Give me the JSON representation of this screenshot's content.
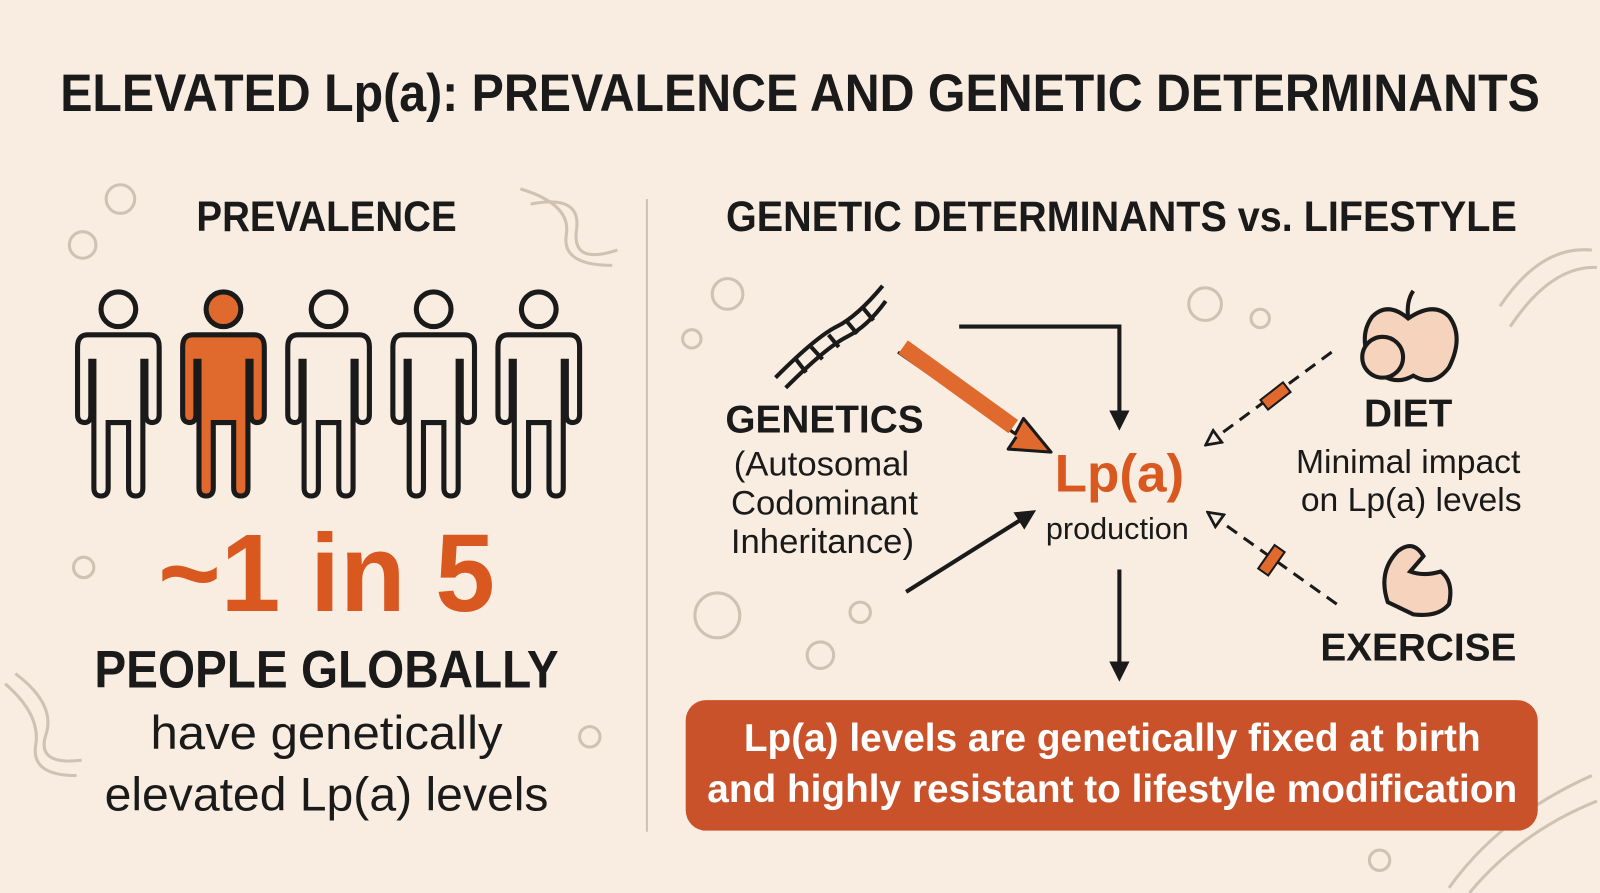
{
  "header": {
    "title": "ELEVATED Lp(a): PREVALENCE AND GENETIC DETERMINANTS"
  },
  "prevalence": {
    "heading": "PREVALENCE",
    "stat": "~1 in 5",
    "stat_caption": "PEOPLE GLOBALLY",
    "description": [
      "have genetically",
      "elevated Lp(a) levels"
    ]
  },
  "determinants": {
    "heading": "GENETIC DETERMINANTS vs. LIFESTYLE",
    "genetics": {
      "label": "GENETICS",
      "detail": [
        "(Autosomal",
        "Codominant",
        "Inheritance)"
      ]
    },
    "center": {
      "label": "Lp(a)",
      "detail": "production"
    },
    "diet": {
      "label": "DIET",
      "detail": [
        "Minimal impact",
        "on Lp(a) levels"
      ]
    },
    "exercise": {
      "label": "EXERCISE"
    },
    "conclusion": [
      "Lp(a) levels are genetically fixed at birth",
      "and highly resistant to lifestyle modification"
    ]
  }
}
